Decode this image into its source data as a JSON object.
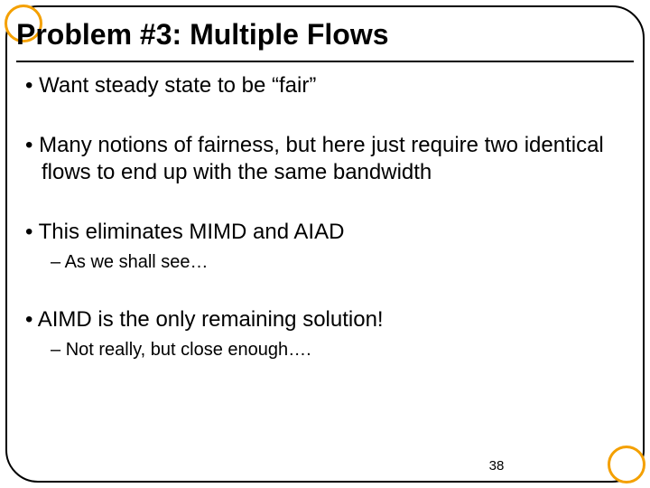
{
  "slide": {
    "title": "Problem #3: Multiple Flows",
    "bullets": [
      {
        "level": 1,
        "text": "Want steady state to be “fair”"
      },
      {
        "level": 1,
        "text": "Many notions of fairness, but here just require two identical flows to end up with the same bandwidth"
      },
      {
        "level": 1,
        "text": "This eliminates MIMD and AIAD"
      },
      {
        "level": 2,
        "text": "As we shall see…"
      },
      {
        "level": 1,
        "text": "AIMD is the only remaining solution!"
      },
      {
        "level": 2,
        "text": "Not really, but close enough…."
      }
    ],
    "page_number": "38"
  },
  "style": {
    "border_color": "#000000",
    "corner_ring_color": "#f4a000",
    "background_color": "#ffffff",
    "title_fontsize": 32,
    "bullet_l1_fontsize": 24,
    "bullet_l2_fontsize": 20,
    "page_number_fontsize": 15,
    "border_radius": 36
  }
}
